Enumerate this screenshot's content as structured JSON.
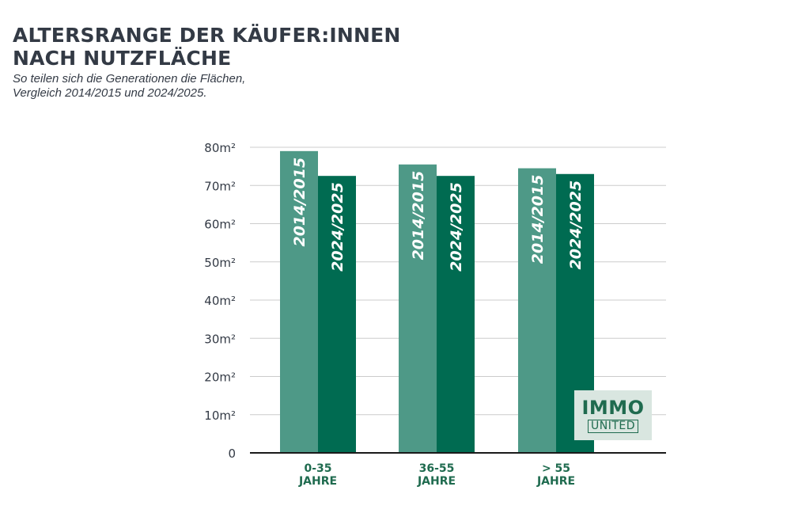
{
  "header": {
    "title_lines": [
      "ALTERSRANGE DER KÄUFER:INNEN",
      "NACH NUTZFLÄCHE"
    ],
    "subtitle_lines": [
      "So teilen sich die Generationen die Flächen,",
      "Vergleich 2014/2015 und 2024/2025."
    ]
  },
  "logo": {
    "top": "IMMO",
    "bottom": "UNITED"
  },
  "colors": {
    "series_2014": "#4e9987",
    "series_2024": "#006b51",
    "label": "#1f6b4f",
    "text": "#333a45",
    "grid": "#cccccc"
  },
  "chart_data": {
    "type": "bar",
    "categories": [
      "0-35 JAHRE",
      "36-55 JAHRE",
      "> 55 JAHRE"
    ],
    "category_lines": [
      [
        "0-35",
        "JAHRE"
      ],
      [
        "36-55",
        "JAHRE"
      ],
      [
        "> 55",
        "JAHRE"
      ]
    ],
    "series": [
      {
        "name": "2014/2015",
        "values": [
          79,
          75.5,
          74.5
        ]
      },
      {
        "name": "2024/2025",
        "values": [
          72.5,
          72.5,
          73
        ]
      }
    ],
    "ylim": [
      0,
      80
    ],
    "yticks": [
      0,
      10,
      20,
      30,
      40,
      50,
      60,
      70,
      80
    ],
    "ytick_labels": [
      "0",
      "10m²",
      "20m²",
      "30m²",
      "40m²",
      "50m²",
      "60m²",
      "70m²",
      "80m²"
    ],
    "grid": true,
    "series_labels_inside_bars": true
  }
}
